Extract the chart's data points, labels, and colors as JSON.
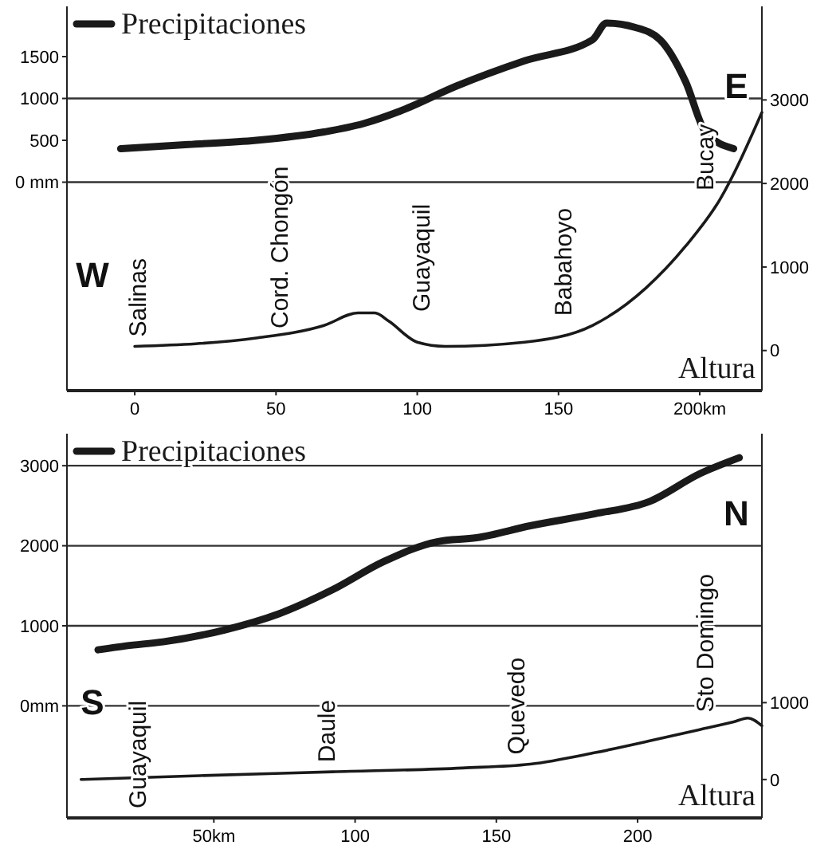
{
  "chart_data": [
    {
      "type": "line",
      "xlim": [
        -24,
        222
      ],
      "xticks": [
        0,
        50,
        100,
        150,
        {
          "value": 200,
          "label": "200km"
        }
      ],
      "ylim": [
        -2490,
        2100
      ],
      "yticks": [
        {
          "value": 0,
          "label": "0 mm"
        },
        500,
        1000,
        1500
      ],
      "y2lim": [
        -480,
        4120
      ],
      "y2ticks": [
        0,
        1000,
        2000,
        3000
      ],
      "ref_lines": [
        {
          "axis": "y",
          "value": 0
        },
        {
          "axis": "y",
          "value": 1000
        }
      ],
      "series": [
        {
          "name": "Precipitaciones",
          "color": "#1a1a1a",
          "x": [
            -5,
            19,
            43,
            67,
            81,
            94,
            114,
            138,
            162,
            167,
            177,
            186,
            195,
            202,
            212
          ],
          "values": [
            400,
            450,
            500,
            600,
            700,
            850,
            1150,
            1450,
            1700,
            1900,
            1850,
            1700,
            1200,
            600,
            400
          ]
        },
        {
          "name": "Altura",
          "color": "#1a1a1a",
          "axis": "y2",
          "x": [
            0,
            43,
            67,
            79,
            85,
            90,
            100,
            110,
            138,
            162,
            181,
            195,
            207,
            222
          ],
          "values": [
            50,
            150,
            300,
            450,
            450,
            350,
            100,
            50,
            100,
            300,
            750,
            1250,
            1800,
            2850
          ]
        }
      ],
      "annotations": [
        "Salinas",
        "Cord. Chongón",
        "Guayaquil",
        "Babahoyo",
        "Bucay",
        "W",
        "E"
      ]
    },
    {
      "type": "line",
      "xlim": [
        -2,
        244
      ],
      "xticks": [
        {
          "value": 50,
          "label": "50km"
        },
        100,
        150,
        200
      ],
      "ylim": [
        -1400,
        3400
      ],
      "yticks": [
        {
          "value": 0,
          "label": "0mm"
        },
        1000,
        2000,
        3000
      ],
      "y2lim": [
        -500,
        4500
      ],
      "y2ticks": [
        0,
        1000
      ],
      "ref_lines": [
        {
          "axis": "y",
          "value": 0
        },
        {
          "axis": "y",
          "value": 1000
        },
        {
          "axis": "y",
          "value": 2000
        },
        {
          "axis": "y",
          "value": 3000
        }
      ],
      "series": [
        {
          "name": "Precipitaciones",
          "color": "#1a1a1a",
          "x": [
            9,
            19,
            32,
            54,
            73,
            92,
            110,
            129,
            143,
            162,
            185,
            204,
            222,
            236
          ],
          "values": [
            700,
            750,
            800,
            950,
            1150,
            1450,
            1800,
            2050,
            2100,
            2250,
            2400,
            2550,
            2900,
            3100
          ]
        },
        {
          "name": "Altura",
          "color": "#1a1a1a",
          "axis": "y2",
          "x": [
            3,
            45,
            92,
            138,
            162,
            185,
            204,
            222,
            234,
            239,
            244
          ],
          "values": [
            0,
            50,
            100,
            150,
            200,
            350,
            500,
            650,
            750,
            800,
            700
          ]
        }
      ],
      "annotations": [
        "Guayaquil",
        "Daule",
        "Quevedo",
        "Sto Domingo",
        "S",
        "N"
      ]
    }
  ]
}
